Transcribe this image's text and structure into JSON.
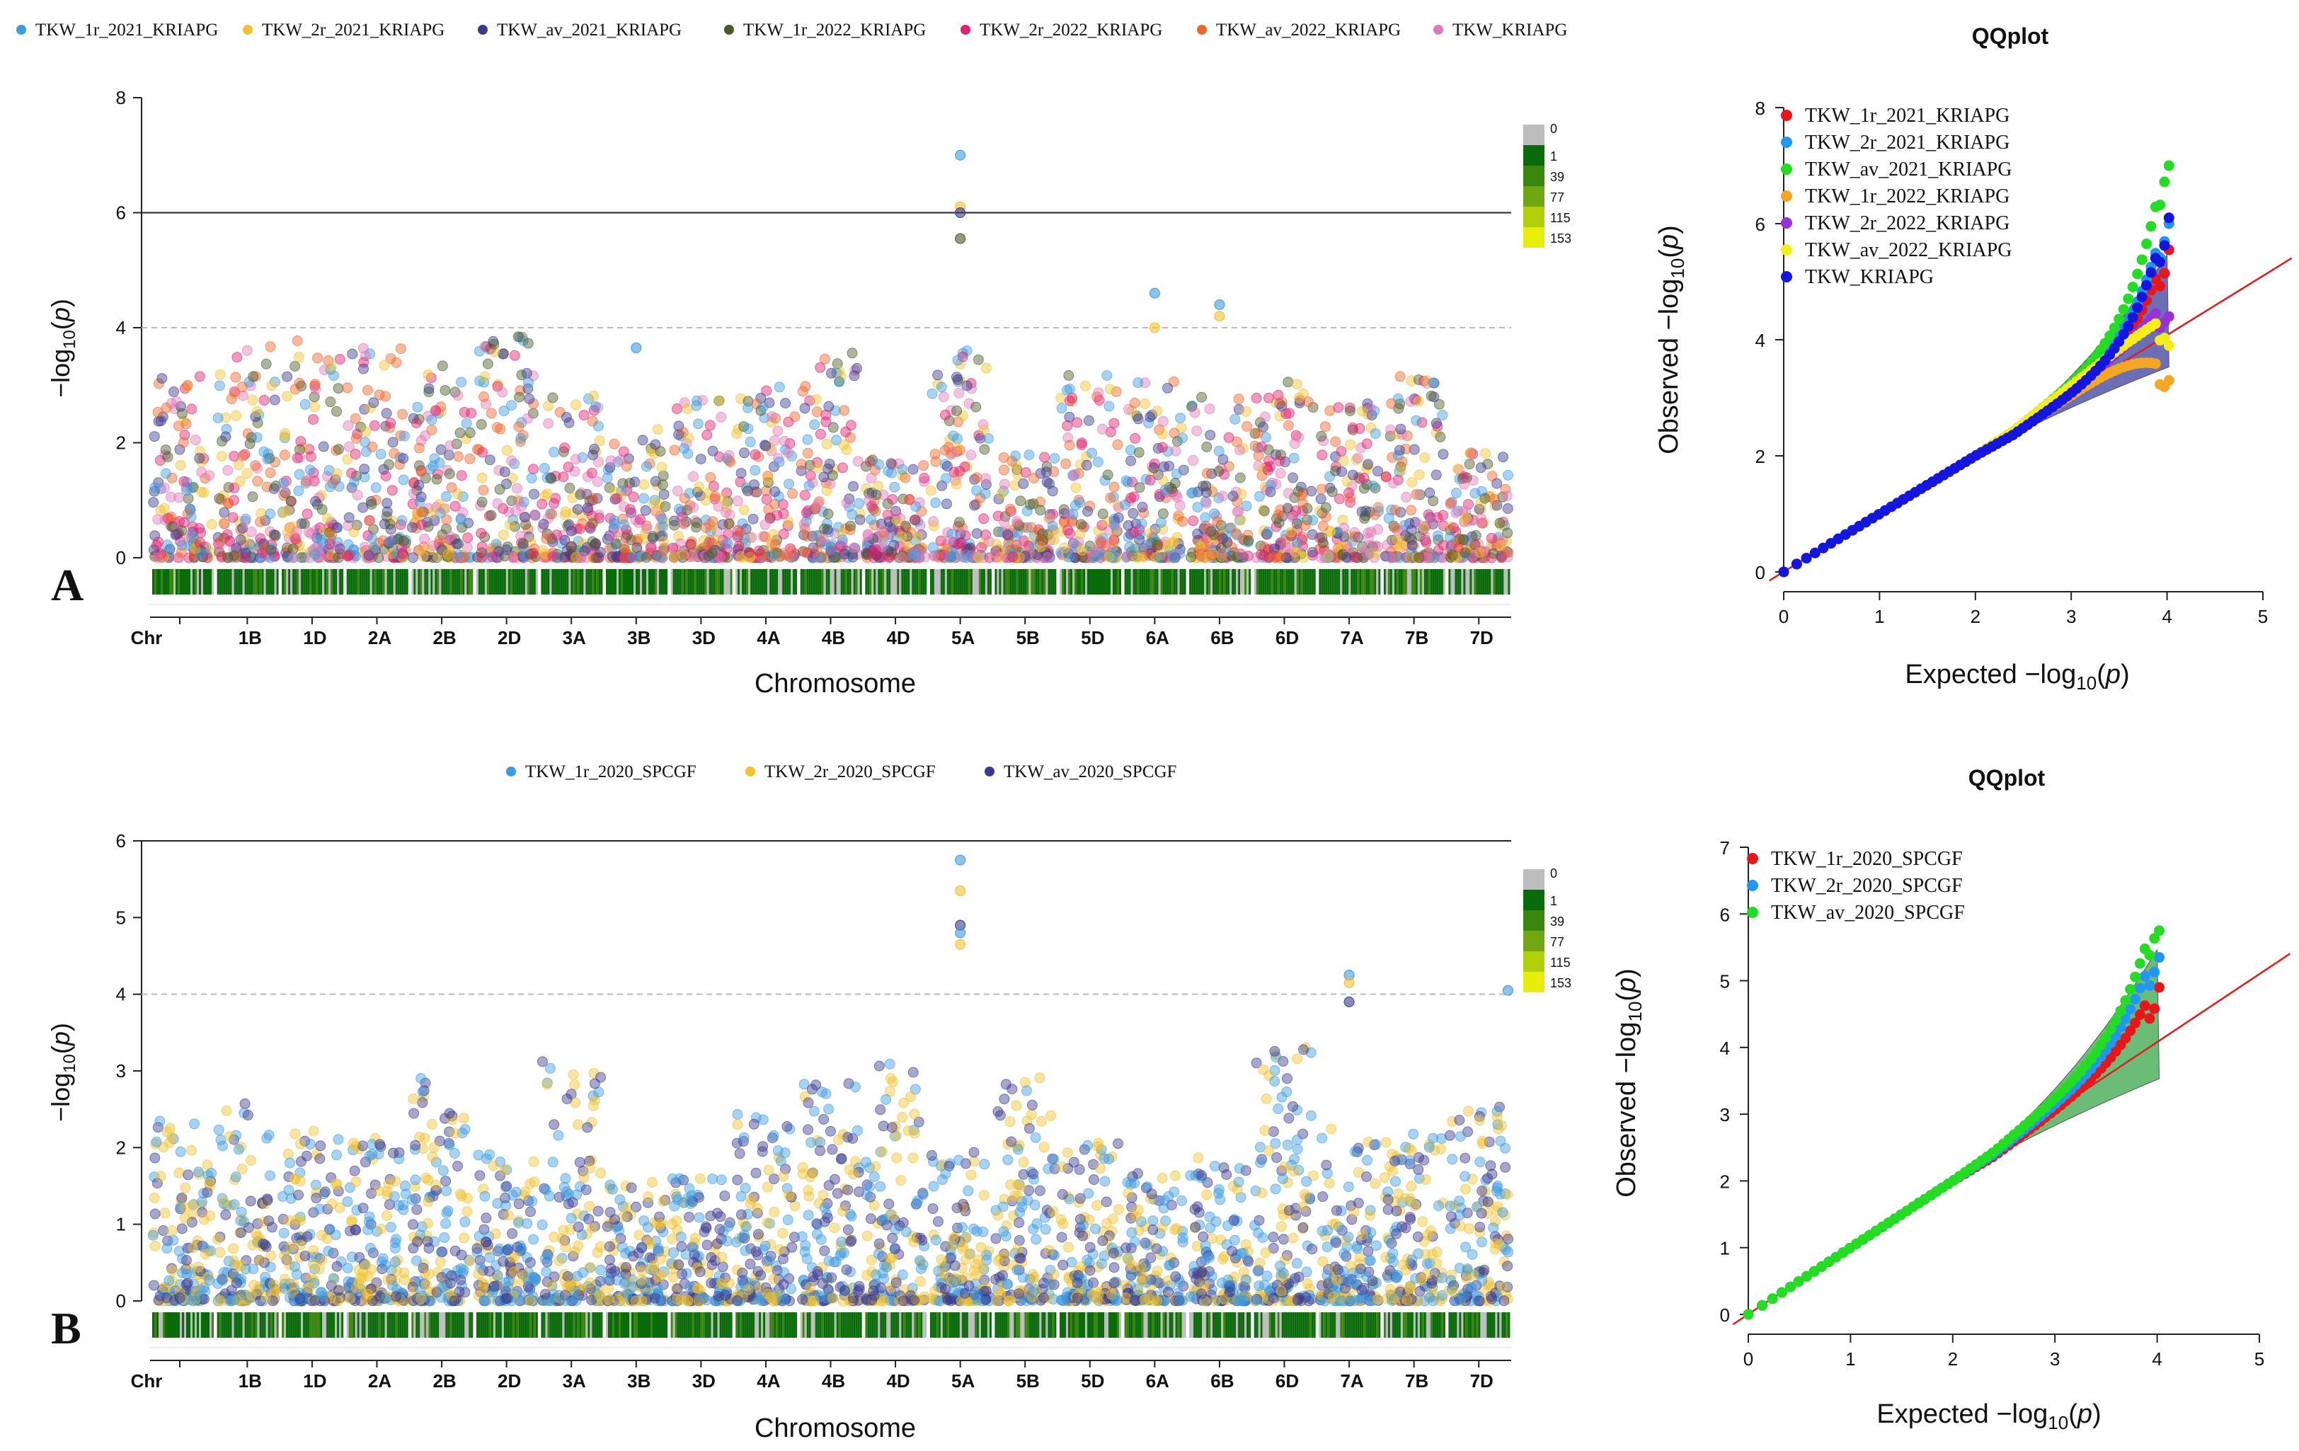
{
  "panel_labels": [
    "A",
    "B"
  ],
  "bin_legend": {
    "labels": [
      "0",
      "1",
      "39",
      "77",
      "115",
      "153"
    ],
    "colors": [
      "#bdbdbd",
      "#0a6b0a",
      "#3a860f",
      "#72a512",
      "#b2cf0c",
      "#e8ee0a"
    ]
  },
  "chart_data": [
    {
      "type": "scatter",
      "name": "manhattan-A",
      "xlabel": "Chromosome",
      "ylabel": "−log10(p)",
      "ylim": [
        0,
        8
      ],
      "yticks": [
        0,
        2,
        4,
        6,
        8
      ],
      "genome_wide_line": 6,
      "suggestive_line": 4,
      "chromosome_labels": [
        "Chr",
        "1B",
        "1D",
        "2A",
        "2B",
        "2D",
        "3A",
        "3B",
        "3D",
        "4A",
        "4B",
        "4D",
        "5A",
        "5B",
        "5D",
        "6A",
        "6B",
        "6D",
        "7A",
        "7B",
        "7D"
      ],
      "series": [
        {
          "name": "TKW_1r_2021_KRIAPG",
          "color": "#3d9be0"
        },
        {
          "name": "TKW_2r_2021_KRIAPG",
          "color": "#f2c12e"
        },
        {
          "name": "TKW_av_2021_KRIAPG",
          "color": "#3b3a8f"
        },
        {
          "name": "TKW_1r_2022_KRIAPG",
          "color": "#4a5a2a"
        },
        {
          "name": "TKW_2r_2022_KRIAPG",
          "color": "#e0206f"
        },
        {
          "name": "TKW_av_2022_KRIAPG",
          "color": "#f0662a"
        },
        {
          "name": "TKW_KRIAPG",
          "color": "#e079b8"
        }
      ],
      "top_hits": [
        {
          "chromosome": "5A",
          "values": [
            7.0,
            6.1,
            6.0,
            5.55
          ]
        },
        {
          "chromosome": "6A",
          "values": [
            4.6,
            4.0
          ]
        },
        {
          "chromosome": "6B",
          "values": [
            4.4,
            4.2
          ]
        },
        {
          "chromosome": "3B",
          "values": [
            3.65
          ]
        }
      ]
    },
    {
      "type": "scatter",
      "name": "qqplot-A",
      "title": "QQplot",
      "xlabel": "Expected −log10(p)",
      "ylabel": "Observed −log10(p)",
      "xlim": [
        0,
        5
      ],
      "ylim": [
        0,
        8
      ],
      "xticks": [
        0,
        1,
        2,
        3,
        4,
        5
      ],
      "yticks": [
        0,
        2,
        4,
        6,
        8
      ],
      "series": [
        {
          "name": "TKW_1r_2021_KRIAPG",
          "color": "#e8161b",
          "max": 5.55
        },
        {
          "name": "TKW_2r_2021_KRIAPG",
          "color": "#2196f3",
          "max": 6.0
        },
        {
          "name": "TKW_av_2021_KRIAPG",
          "color": "#22dd22",
          "max": 7.0
        },
        {
          "name": "TKW_1r_2022_KRIAPG",
          "color": "#f5a623",
          "max": 3.3
        },
        {
          "name": "TKW_2r_2022_KRIAPG",
          "color": "#9b30d9",
          "max": 4.4
        },
        {
          "name": "TKW_av_2022_KRIAPG",
          "color": "#f6ee1a",
          "max": 3.9
        },
        {
          "name": "TKW_KRIAPG",
          "color": "#1515e0",
          "max": 6.1
        }
      ],
      "band_color": "#3b3f9a"
    },
    {
      "type": "scatter",
      "name": "manhattan-B",
      "xlabel": "Chromosome",
      "ylabel": "−log10(p)",
      "ylim": [
        0,
        6
      ],
      "yticks": [
        0,
        1,
        2,
        3,
        4,
        5,
        6
      ],
      "suggestive_line": 4,
      "chromosome_labels": [
        "Chr",
        "1B",
        "1D",
        "2A",
        "2B",
        "2D",
        "3A",
        "3B",
        "3D",
        "4A",
        "4B",
        "4D",
        "5A",
        "5B",
        "5D",
        "6A",
        "6B",
        "6D",
        "7A",
        "7B",
        "7D"
      ],
      "series": [
        {
          "name": "TKW_1r_2020_SPCGF",
          "color": "#3d9be0"
        },
        {
          "name": "TKW_2r_2020_SPCGF",
          "color": "#f2c12e"
        },
        {
          "name": "TKW_av_2020_SPCGF",
          "color": "#3b3a8f"
        }
      ],
      "top_hits": [
        {
          "chromosome": "5A",
          "values": [
            5.75,
            5.35,
            4.9,
            4.8,
            4.65
          ]
        },
        {
          "chromosome": "7A",
          "values": [
            4.25,
            4.15,
            3.9
          ]
        },
        {
          "chromosome": "7D",
          "values": [
            4.05
          ]
        }
      ]
    },
    {
      "type": "scatter",
      "name": "qqplot-B",
      "title": "QQplot",
      "xlabel": "Expected −log10(p)",
      "ylabel": "Observed −log10(p)",
      "xlim": [
        0,
        5
      ],
      "ylim": [
        0,
        7
      ],
      "xticks": [
        0,
        1,
        2,
        3,
        4,
        5
      ],
      "yticks": [
        0,
        1,
        2,
        3,
        4,
        5,
        6,
        7
      ],
      "series": [
        {
          "name": "TKW_1r_2020_SPCGF",
          "color": "#e8161b",
          "max": 4.9
        },
        {
          "name": "TKW_2r_2020_SPCGF",
          "color": "#2196f3",
          "max": 5.35
        },
        {
          "name": "TKW_av_2020_SPCGF",
          "color": "#22dd22",
          "max": 5.75
        }
      ],
      "band_color": "#3aa64a"
    }
  ]
}
